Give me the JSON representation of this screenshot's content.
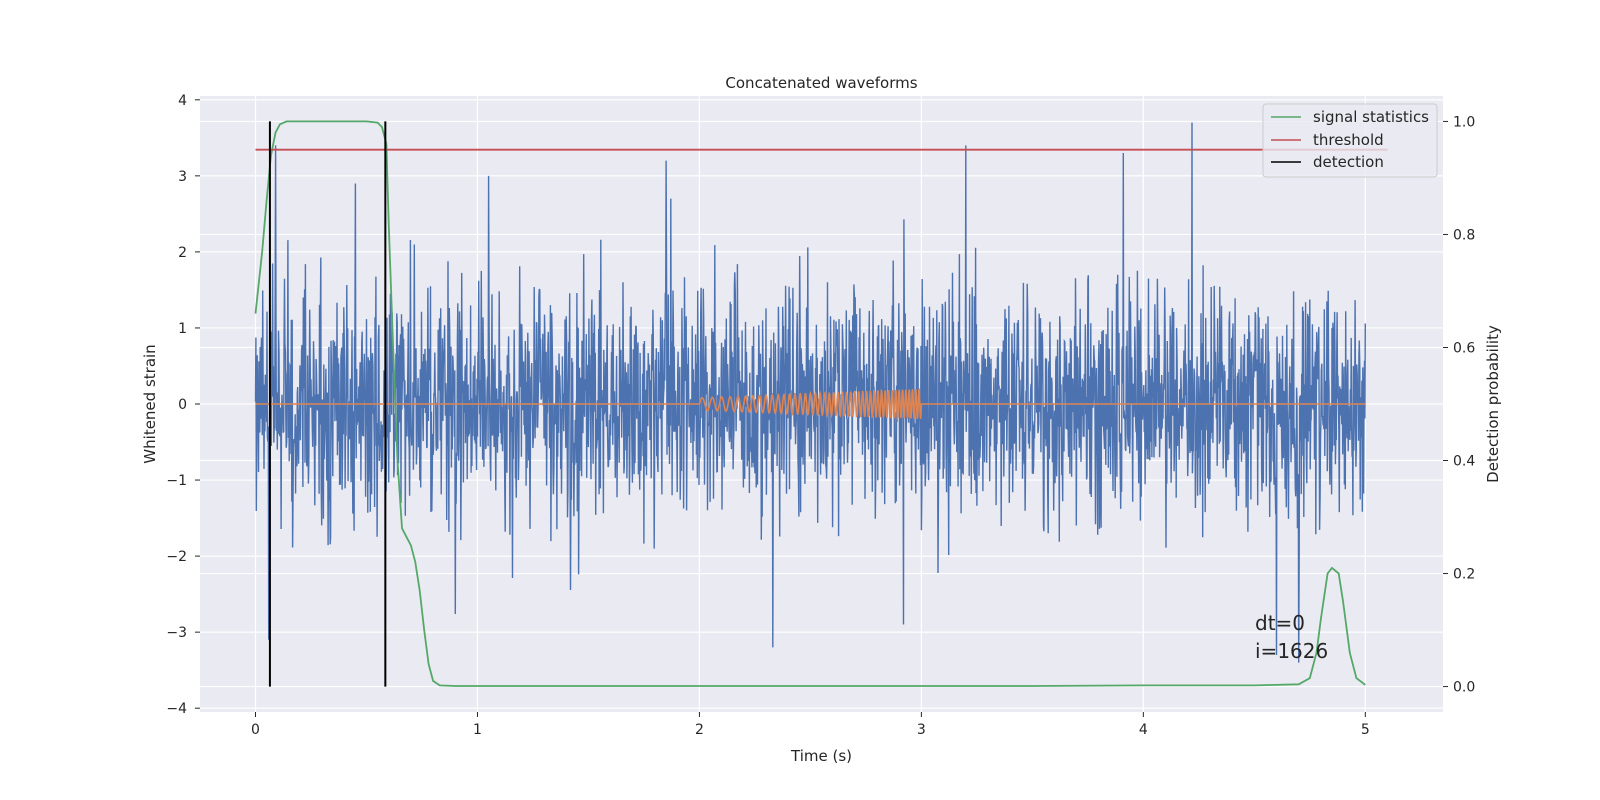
{
  "chart_data": {
    "type": "line",
    "title": "Concatenated waveforms",
    "xlabel": "Time (s)",
    "ylabel": "Whitened strain",
    "ylabel_right": "Detection probability",
    "xlim": [
      -0.25,
      5.35
    ],
    "ylim": [
      -4.05,
      4.05
    ],
    "ylim_right": [
      -0.045,
      1.045
    ],
    "x_ticks": [
      "0",
      "1",
      "2",
      "3",
      "4",
      "5"
    ],
    "y_ticks": [
      "−4",
      "−3",
      "−2",
      "−1",
      "0",
      "1",
      "2",
      "3",
      "4"
    ],
    "y_ticks_right": [
      "0.0",
      "0.2",
      "0.4",
      "0.6",
      "0.8",
      "1.0"
    ],
    "grid": true,
    "legend_position": "top-right",
    "legend": [
      {
        "label": "signal statistics",
        "color": "#55a868"
      },
      {
        "label": "threshold",
        "color": "#c44e52"
      },
      {
        "label": "detection",
        "color": "#000000"
      }
    ],
    "series": [
      {
        "name": "",
        "color": "#4c72b0",
        "description_x_range": [
          0,
          5
        ],
        "noise_std": 0.73,
        "peak_extremes": [
          {
            "x": 0.09,
            "y": 3.4
          },
          {
            "x": 0.06,
            "y": -3.1
          },
          {
            "x": 0.45,
            "y": 2.9
          },
          {
            "x": 1.05,
            "y": 3.0
          },
          {
            "x": 1.85,
            "y": 3.2
          },
          {
            "x": 3.2,
            "y": 3.4
          },
          {
            "x": 4.22,
            "y": 3.7
          },
          {
            "x": 3.91,
            "y": 3.3
          },
          {
            "x": 4.6,
            "y": -3.3
          },
          {
            "x": 2.33,
            "y": -3.2
          },
          {
            "x": 2.92,
            "y": -2.9
          },
          {
            "x": 4.7,
            "y": -3.4
          }
        ]
      },
      {
        "name": "",
        "color": "#dd8452",
        "x_range": [
          0,
          5
        ],
        "chirp": {
          "start": 2.0,
          "end": 3.0,
          "f0": 20,
          "f1": 70,
          "amp_start": 0.08,
          "amp_end": 0.2
        }
      },
      {
        "name": "signal statistics",
        "color": "#55a868",
        "axis": "right",
        "x": [
          0,
          0.03,
          0.05,
          0.07,
          0.09,
          0.11,
          0.14,
          0.2,
          0.3,
          0.4,
          0.5,
          0.55,
          0.57,
          0.59,
          0.6,
          0.62,
          0.64,
          0.66,
          0.68,
          0.7,
          0.72,
          0.74,
          0.76,
          0.78,
          0.8,
          0.83,
          0.9,
          1.0,
          2.0,
          3.0,
          3.5,
          4.0,
          4.5,
          4.7,
          4.75,
          4.78,
          4.8,
          4.83,
          4.85,
          4.88,
          4.9,
          4.93,
          4.96,
          5.0
        ],
        "y": [
          0.66,
          0.77,
          0.86,
          0.94,
          0.98,
          0.995,
          1.0,
          1.0,
          1.0,
          1.0,
          1.0,
          0.998,
          0.99,
          0.96,
          0.82,
          0.6,
          0.4,
          0.28,
          0.265,
          0.25,
          0.22,
          0.17,
          0.1,
          0.04,
          0.01,
          0.002,
          0.001,
          0.001,
          0.001,
          0.001,
          0.001,
          0.002,
          0.002,
          0.004,
          0.015,
          0.06,
          0.12,
          0.2,
          0.21,
          0.2,
          0.15,
          0.06,
          0.015,
          0.003
        ]
      },
      {
        "name": "threshold",
        "color": "#c44e52",
        "axis": "right",
        "x": [
          0,
          5.1
        ],
        "y": [
          0.95,
          0.95
        ]
      },
      {
        "name": "detection",
        "color": "#000000",
        "axis": "right",
        "type": "vline",
        "x": [
          0.065,
          0.585
        ],
        "y": [
          0,
          1.0
        ]
      }
    ],
    "annotations": [
      {
        "text": "dt=0",
        "x": 4.5,
        "y": -2.95
      },
      {
        "text": "i=1626",
        "x": 4.5,
        "y": -3.32
      }
    ]
  }
}
